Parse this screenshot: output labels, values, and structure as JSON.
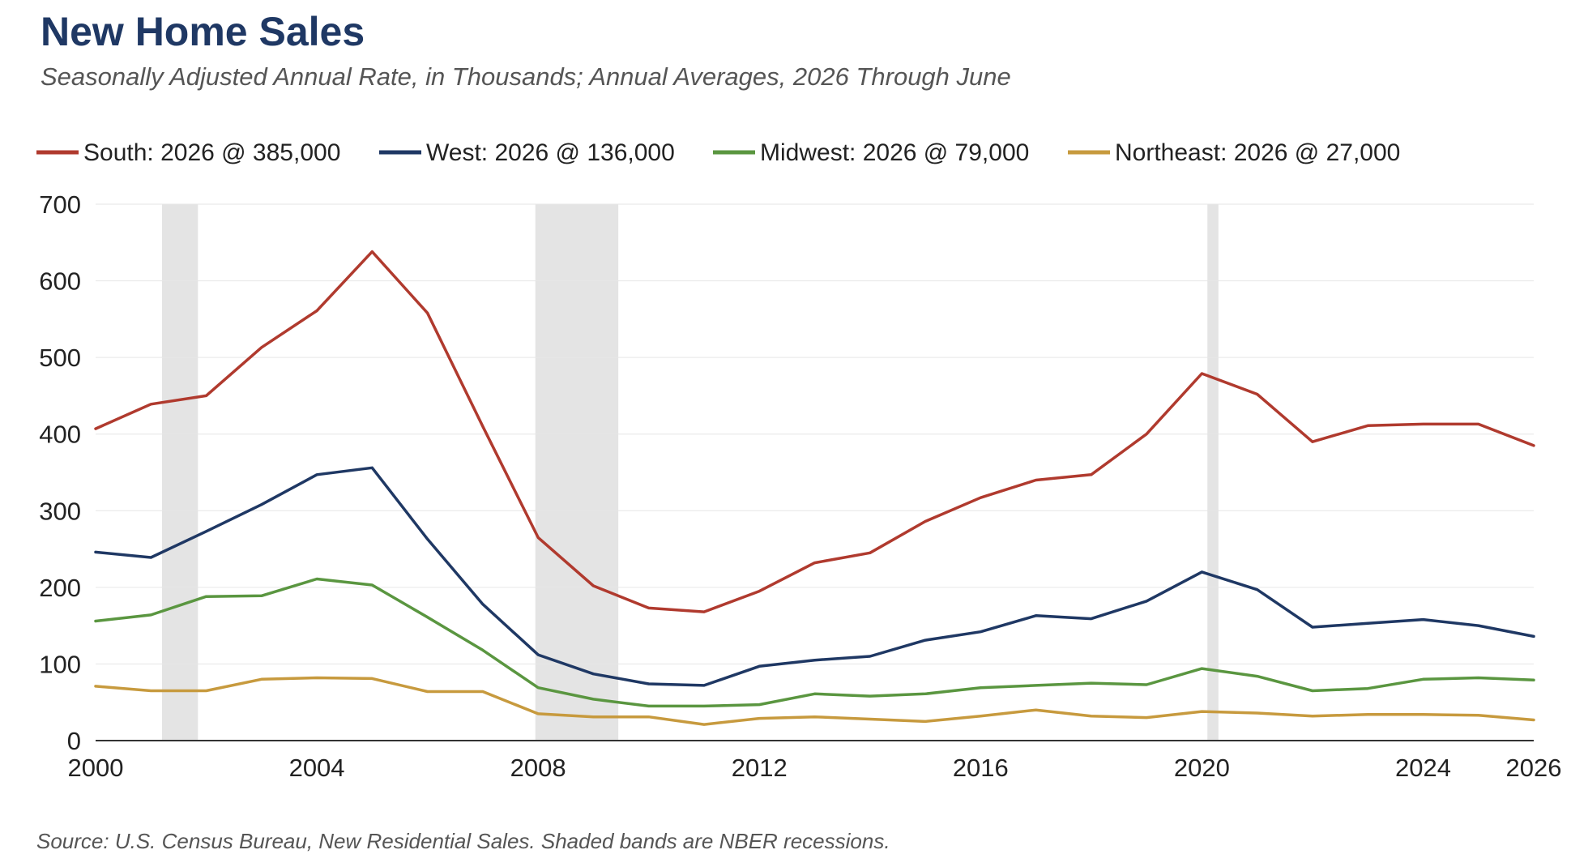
{
  "title": "New Home Sales",
  "subtitle": "Seasonally Adjusted Annual Rate, in Thousands; Annual Averages, 2026 Through June",
  "source": "Source: U.S. Census Bureau, New Residential Sales. Shaded bands are NBER recessions.",
  "chart_data": {
    "type": "line",
    "x": [
      2000,
      2001,
      2002,
      2003,
      2004,
      2005,
      2006,
      2007,
      2008,
      2009,
      2010,
      2011,
      2012,
      2013,
      2014,
      2015,
      2016,
      2017,
      2018,
      2019,
      2020,
      2021,
      2022,
      2023,
      2024,
      2025,
      2026
    ],
    "xlim": [
      2000,
      2026
    ],
    "ylim": [
      0,
      700
    ],
    "xticks": [
      2000,
      2004,
      2008,
      2012,
      2016,
      2020,
      2024,
      2026
    ],
    "yticks": [
      0,
      100,
      200,
      300,
      400,
      500,
      600,
      700
    ],
    "grid": true,
    "legend_position": "top",
    "recessions": [
      {
        "start": 2001.2,
        "end": 2001.85
      },
      {
        "start": 2007.95,
        "end": 2009.45
      },
      {
        "start": 2020.1,
        "end": 2020.3
      }
    ],
    "recession_color": "#e4e4e4",
    "series": [
      {
        "name": "South: 2026 @ 385,000",
        "color": "#b03a2e",
        "values": [
          407,
          439,
          450,
          513,
          561,
          638,
          558,
          410,
          265,
          202,
          173,
          168,
          195,
          232,
          245,
          286,
          317,
          340,
          347,
          400,
          479,
          452,
          390,
          411,
          413,
          413,
          385
        ]
      },
      {
        "name": "West: 2026 @ 136,000",
        "color": "#1f3864",
        "values": [
          246,
          239,
          273,
          308,
          347,
          356,
          263,
          178,
          112,
          87,
          74,
          72,
          97,
          105,
          110,
          131,
          142,
          163,
          159,
          182,
          220,
          197,
          148,
          153,
          158,
          150,
          136
        ]
      },
      {
        "name": "Midwest: 2026 @ 79,000",
        "color": "#5a9640",
        "values": [
          156,
          164,
          188,
          189,
          211,
          203,
          161,
          118,
          69,
          54,
          45,
          45,
          47,
          61,
          58,
          61,
          69,
          72,
          75,
          73,
          94,
          84,
          65,
          68,
          80,
          82,
          79
        ]
      },
      {
        "name": "Northeast: 2026 @ 27,000",
        "color": "#c79a3e",
        "values": [
          71,
          65,
          65,
          80,
          82,
          81,
          64,
          64,
          35,
          31,
          31,
          21,
          29,
          31,
          28,
          25,
          32,
          40,
          32,
          30,
          38,
          36,
          32,
          34,
          34,
          33,
          27
        ]
      }
    ]
  }
}
